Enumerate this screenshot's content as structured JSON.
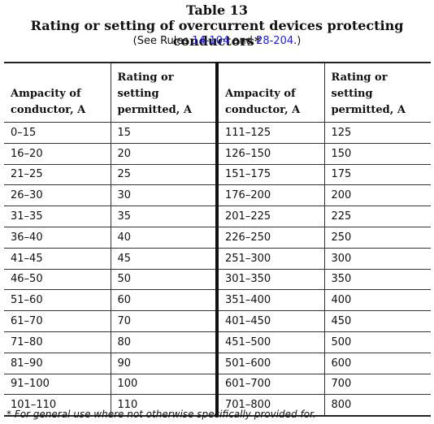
{
  "header": {
    "table_number": "Table 13",
    "title": "Rating or setting of overcurrent devices protecting conductors*",
    "see_prefix": "(See Rules ",
    "rule1": "14-104",
    "and": " and ",
    "rule2": "28-204",
    "see_suffix": ".)"
  },
  "columns": [
    [
      "Ampacity of",
      "conductor, A"
    ],
    [
      "Rating or",
      "setting",
      "permitted, A"
    ],
    [
      "Ampacity of",
      "conductor, A"
    ],
    [
      "Rating or",
      "setting",
      "permitted, A"
    ]
  ],
  "rows": [
    [
      "0–15",
      "15",
      "111–125",
      "125"
    ],
    [
      "16–20",
      "20",
      "126–150",
      "150"
    ],
    [
      "21–25",
      "25",
      "151–175",
      "175"
    ],
    [
      "26–30",
      "30",
      "176–200",
      "200"
    ],
    [
      "31–35",
      "35",
      "201–225",
      "225"
    ],
    [
      "36–40",
      "40",
      "226–250",
      "250"
    ],
    [
      "41–45",
      "45",
      "251–300",
      "300"
    ],
    [
      "46–50",
      "50",
      "301–350",
      "350"
    ],
    [
      "51–60",
      "60",
      "351–400",
      "400"
    ],
    [
      "61–70",
      "70",
      "401–450",
      "450"
    ],
    [
      "71–80",
      "80",
      "451–500",
      "500"
    ],
    [
      "81–90",
      "90",
      "501–600",
      "600"
    ],
    [
      "91–100",
      "100",
      "601–700",
      "700"
    ],
    [
      "101–110",
      "110",
      "701–800",
      "800"
    ]
  ],
  "footnote": "* For general use where not otherwise specifically provided for."
}
